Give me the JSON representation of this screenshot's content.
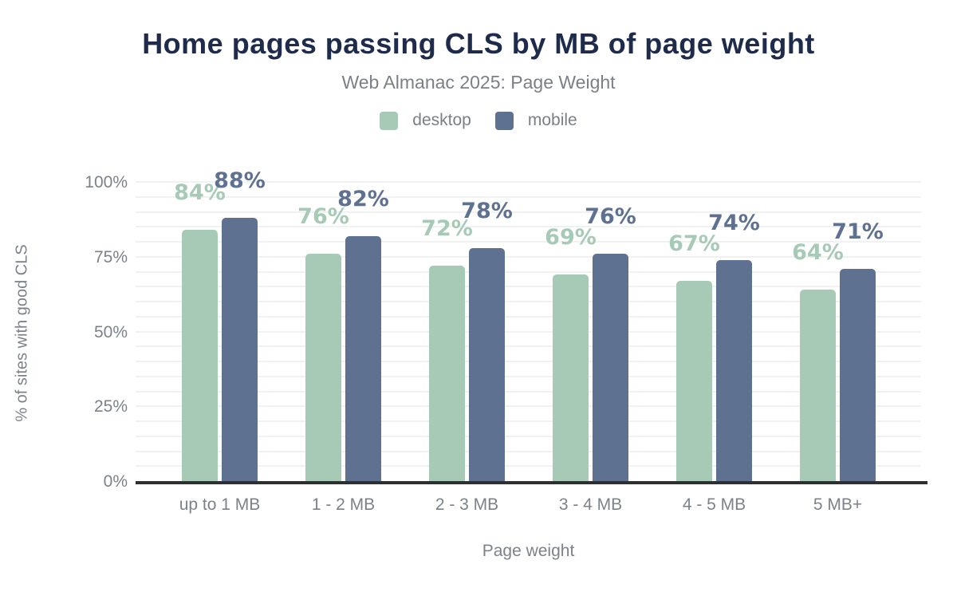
{
  "header": {
    "title": "Home pages passing CLS by MB of page weight",
    "subtitle": "Web Almanac 2025: Page Weight"
  },
  "legend": [
    {
      "label": "desktop",
      "color": "#a7cab7"
    },
    {
      "label": "mobile",
      "color": "#5f7190"
    }
  ],
  "axes": {
    "x_title": "Page weight",
    "y_title": "% of sites with good CLS",
    "y_tick_labels": [
      "0%",
      "25%",
      "50%",
      "75%",
      "100%"
    ]
  },
  "colors": {
    "title_navy": "#1e2b4b",
    "text_gray": "#7c828a",
    "desktop_green": "#a7cab7",
    "mobile_slate": "#5f7190",
    "axis_line": "#2e2f31",
    "gridline": "#f1f1f2"
  },
  "chart_data": {
    "type": "bar",
    "title": "Home pages passing CLS by MB of page weight",
    "subtitle": "Web Almanac 2025: Page Weight",
    "categories": [
      "up to 1 MB",
      "1 - 2 MB",
      "2 - 3 MB",
      "3 - 4 MB",
      "4 - 5 MB",
      "5 MB+"
    ],
    "series": [
      {
        "name": "desktop",
        "color": "#a7cab7",
        "values": [
          84,
          76,
          72,
          69,
          67,
          64
        ]
      },
      {
        "name": "mobile",
        "color": "#5f7190",
        "values": [
          88,
          82,
          78,
          76,
          74,
          71
        ]
      }
    ],
    "value_suffix": "%",
    "xlabel": "Page weight",
    "ylabel": "% of sites with good CLS",
    "ylim": [
      0,
      100
    ],
    "yticks": [
      0,
      25,
      50,
      75,
      100
    ],
    "grid": "horizontal, every 5%",
    "legend_position": "top",
    "data_labels": "shown above bars in series color"
  }
}
